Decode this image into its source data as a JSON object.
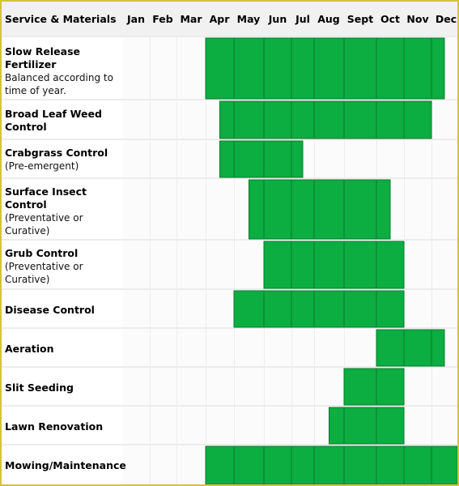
{
  "chart_data": {
    "type": "gantt",
    "header": "Service & Materials",
    "months": [
      "Jan",
      "Feb",
      "Mar",
      "Apr",
      "May",
      "Jun",
      "Jul",
      "Aug",
      "Sept",
      "Oct",
      "Nov",
      "Dec"
    ],
    "bar_color": "#0cad41",
    "rows": [
      {
        "name": "Slow Release Fertilizer",
        "sub": "Balanced according to time of year.",
        "start": 3.0,
        "end": 11.5
      },
      {
        "name": "Broad Leaf Weed Control",
        "sub": "",
        "start": 3.5,
        "end": 11.0
      },
      {
        "name": "Crabgrass Control",
        "sub": "(Pre-emergent)",
        "start": 3.5,
        "end": 6.5
      },
      {
        "name": "Surface Insect Control",
        "sub": "(Preventative or Curative)",
        "start": 4.5,
        "end": 9.5
      },
      {
        "name": "Grub Control",
        "sub": "(Preventative or Curative)",
        "start": 5.0,
        "end": 10.0
      },
      {
        "name": "Disease Control",
        "sub": "",
        "start": 4.0,
        "end": 10.0
      },
      {
        "name": "Aeration",
        "sub": "",
        "start": 9.0,
        "end": 11.5
      },
      {
        "name": "Slit Seeding",
        "sub": "",
        "start": 8.0,
        "end": 10.0
      },
      {
        "name": "Lawn Renovation",
        "sub": "",
        "start": 7.5,
        "end": 10.0
      },
      {
        "name": "Mowing/Maintenance",
        "sub": "",
        "start": 3.0,
        "end": 12.0
      }
    ]
  }
}
